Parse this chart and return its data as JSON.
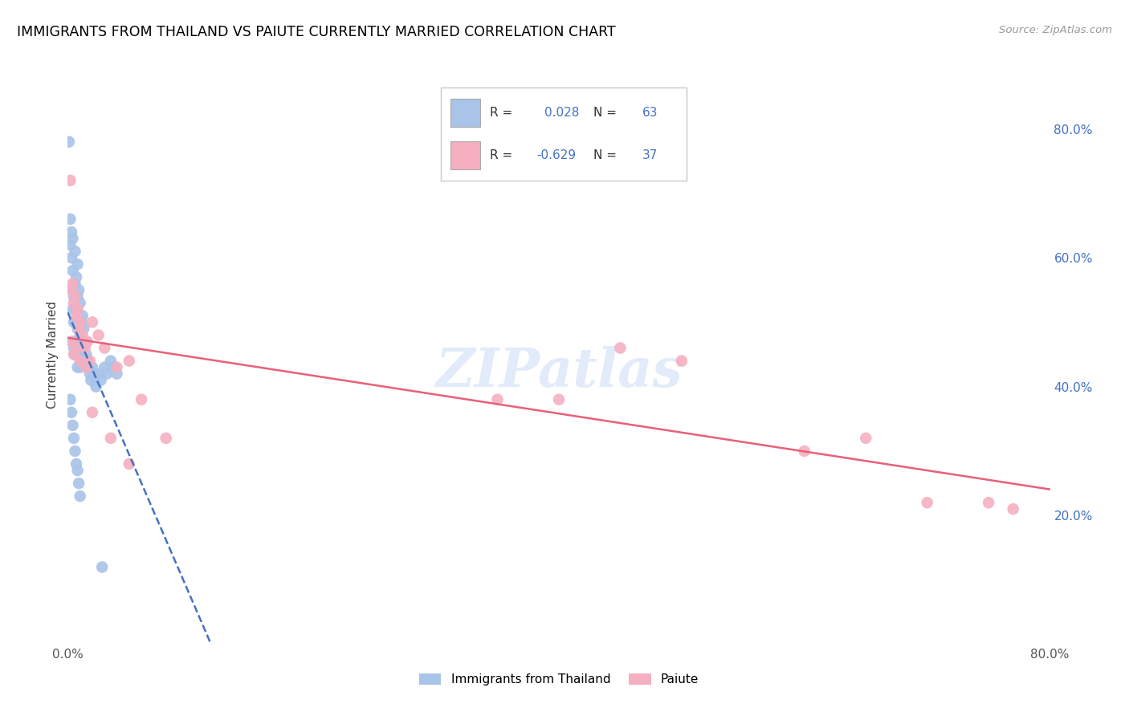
{
  "title": "IMMIGRANTS FROM THAILAND VS PAIUTE CURRENTLY MARRIED CORRELATION CHART",
  "source": "Source: ZipAtlas.com",
  "ylabel": "Currently Married",
  "watermark": "ZIPatlas",
  "xlim": [
    0.0,
    0.8
  ],
  "ylim": [
    0.0,
    0.9
  ],
  "xtick_positions": [
    0.0,
    0.1,
    0.2,
    0.3,
    0.4,
    0.5,
    0.6,
    0.7,
    0.8
  ],
  "xticklabels": [
    "0.0%",
    "",
    "",
    "",
    "",
    "",
    "",
    "",
    "80.0%"
  ],
  "yticks_right": [
    0.2,
    0.4,
    0.6,
    0.8
  ],
  "ytick_right_labels": [
    "20.0%",
    "40.0%",
    "60.0%",
    "80.0%"
  ],
  "legend_labels": [
    "Immigrants from Thailand",
    "Paiute"
  ],
  "series1_color": "#a8c4e8",
  "series2_color": "#f5afc0",
  "series1_line_color": "#4472c4",
  "series2_line_color": "#e8607a",
  "R1": 0.028,
  "N1": 63,
  "R2": -0.629,
  "N2": 37,
  "series1_x": [
    0.001,
    0.002,
    0.002,
    0.003,
    0.003,
    0.003,
    0.004,
    0.004,
    0.004,
    0.004,
    0.005,
    0.005,
    0.005,
    0.006,
    0.006,
    0.006,
    0.006,
    0.007,
    0.007,
    0.007,
    0.008,
    0.008,
    0.008,
    0.008,
    0.009,
    0.009,
    0.009,
    0.01,
    0.01,
    0.01,
    0.011,
    0.011,
    0.012,
    0.012,
    0.013,
    0.013,
    0.014,
    0.015,
    0.016,
    0.017,
    0.018,
    0.019,
    0.02,
    0.021,
    0.022,
    0.023,
    0.025,
    0.027,
    0.03,
    0.032,
    0.035,
    0.038,
    0.04,
    0.002,
    0.003,
    0.004,
    0.005,
    0.006,
    0.007,
    0.008,
    0.009,
    0.01,
    0.028
  ],
  "series1_y": [
    0.78,
    0.66,
    0.62,
    0.64,
    0.6,
    0.55,
    0.63,
    0.58,
    0.52,
    0.47,
    0.54,
    0.5,
    0.46,
    0.61,
    0.56,
    0.5,
    0.45,
    0.57,
    0.52,
    0.47,
    0.59,
    0.54,
    0.49,
    0.43,
    0.55,
    0.5,
    0.45,
    0.53,
    0.48,
    0.43,
    0.5,
    0.44,
    0.51,
    0.46,
    0.49,
    0.44,
    0.47,
    0.45,
    0.44,
    0.43,
    0.42,
    0.41,
    0.43,
    0.42,
    0.41,
    0.4,
    0.42,
    0.41,
    0.43,
    0.42,
    0.44,
    0.43,
    0.42,
    0.38,
    0.36,
    0.34,
    0.32,
    0.3,
    0.28,
    0.27,
    0.25,
    0.23,
    0.12
  ],
  "series2_x": [
    0.002,
    0.003,
    0.004,
    0.005,
    0.006,
    0.007,
    0.008,
    0.009,
    0.01,
    0.012,
    0.014,
    0.016,
    0.018,
    0.02,
    0.025,
    0.03,
    0.04,
    0.05,
    0.06,
    0.08,
    0.003,
    0.005,
    0.007,
    0.01,
    0.015,
    0.02,
    0.035,
    0.05,
    0.35,
    0.4,
    0.45,
    0.5,
    0.6,
    0.65,
    0.7,
    0.75,
    0.77
  ],
  "series2_y": [
    0.72,
    0.55,
    0.56,
    0.53,
    0.54,
    0.51,
    0.52,
    0.49,
    0.5,
    0.48,
    0.46,
    0.47,
    0.44,
    0.5,
    0.48,
    0.46,
    0.43,
    0.44,
    0.38,
    0.32,
    0.47,
    0.45,
    0.46,
    0.44,
    0.43,
    0.36,
    0.32,
    0.28,
    0.38,
    0.38,
    0.46,
    0.44,
    0.3,
    0.32,
    0.22,
    0.22,
    0.21
  ]
}
